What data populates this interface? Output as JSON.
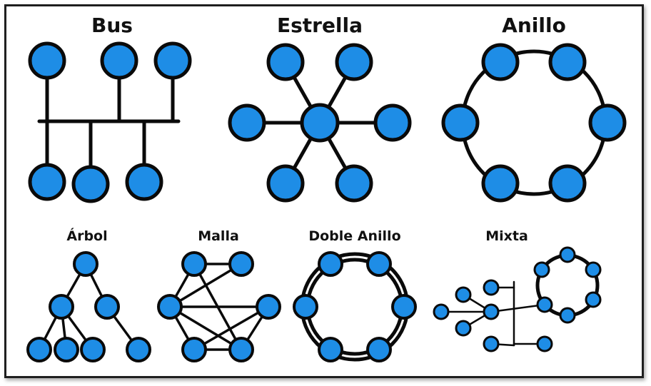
{
  "colors": {
    "node_fill": "#1e8de6",
    "edge": "#0a0a0a"
  },
  "topologies": {
    "bus": {
      "label": "Bus"
    },
    "estrella": {
      "label": "Estrella"
    },
    "anillo": {
      "label": "Anillo"
    },
    "arbol": {
      "label": "Árbol"
    },
    "malla": {
      "label": "Malla"
    },
    "doble_anillo": {
      "label": "Doble Anillo"
    },
    "mixta": {
      "label": "Mixta"
    }
  }
}
